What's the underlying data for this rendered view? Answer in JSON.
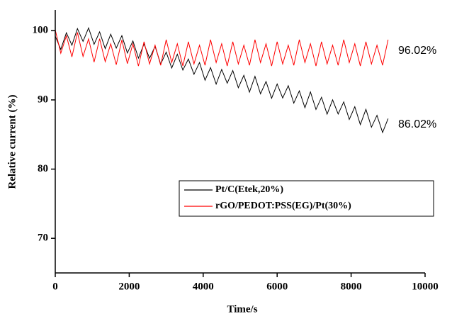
{
  "chart_data": {
    "type": "line",
    "xlabel": "Time/s",
    "ylabel": "Relative current (%)",
    "x": [
      0,
      150,
      300,
      450,
      600,
      750,
      900,
      1050,
      1200,
      1350,
      1500,
      1650,
      1800,
      1950,
      2100,
      2250,
      2400,
      2550,
      2700,
      2850,
      3000,
      3150,
      3300,
      3450,
      3600,
      3750,
      3900,
      4050,
      4200,
      4350,
      4500,
      4650,
      4800,
      4950,
      5100,
      5250,
      5400,
      5550,
      5700,
      5850,
      6000,
      6150,
      6300,
      6450,
      6600,
      6750,
      6900,
      7050,
      7200,
      7350,
      7500,
      7650,
      7800,
      7950,
      8100,
      8250,
      8400,
      8550,
      8700,
      8850,
      9000
    ],
    "series": [
      {
        "name": "Pt/C(Etek,20%)",
        "color": "#000000",
        "values": [
          99.2,
          97.3,
          99.7,
          97.9,
          100.3,
          98.45,
          100.4,
          98.03,
          99.82,
          97.41,
          99.5,
          97.49,
          99.28,
          96.77,
          98.52,
          96.05,
          98.08,
          96.01,
          97.74,
          95.17,
          96.9,
          94.6,
          96.6,
          94.3,
          95.9,
          93.7,
          95.4,
          92.84,
          94.66,
          92.28,
          94.4,
          92.42,
          94.24,
          91.76,
          93.55,
          91.13,
          93.4,
          90.88,
          92.65,
          90.23,
          92.3,
          90.28,
          92.05,
          89.53,
          91.3,
          88.88,
          91.15,
          88.62,
          90.38,
          87.94,
          90.0,
          87.96,
          89.72,
          87.18,
          89.01,
          86.43,
          88.64,
          86.06,
          87.77,
          85.29,
          87.3
        ]
      },
      {
        "name": "rGO/PEDOT:PSS(EG)/Pt(30%)",
        "color": "#ff0000",
        "values": [
          100.1,
          96.74,
          99.27,
          96.21,
          99.74,
          96.28,
          98.81,
          95.46,
          98.84,
          95.52,
          98.1,
          95.08,
          98.66,
          95.24,
          98.1,
          94.9,
          98.4,
          95.2,
          97.9,
          95.0,
          98.7,
          95.4,
          98.1,
          94.9,
          98.4,
          95.2,
          97.9,
          95.0,
          98.7,
          95.4,
          98.1,
          94.9,
          98.4,
          95.2,
          97.9,
          95.0,
          98.7,
          95.4,
          98.1,
          94.9,
          98.4,
          95.2,
          97.9,
          95.0,
          98.7,
          95.4,
          98.1,
          94.9,
          98.4,
          95.2,
          97.9,
          95.0,
          98.7,
          95.4,
          98.1,
          94.9,
          98.4,
          95.2,
          97.9,
          95.0,
          98.7
        ]
      }
    ],
    "annotations": [
      "96.02%",
      "86.02%"
    ],
    "xlim": [
      0,
      10000
    ],
    "xticks": [
      0,
      2000,
      4000,
      6000,
      8000,
      10000
    ],
    "ylim": [
      65,
      103
    ],
    "yticks": [
      70,
      80,
      90,
      100
    ],
    "grid": false
  }
}
